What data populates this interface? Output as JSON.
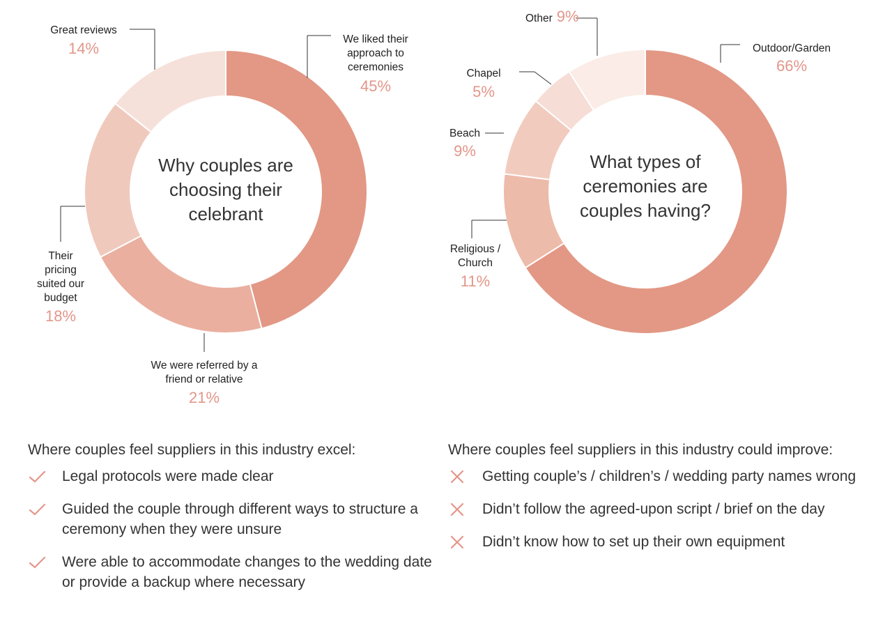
{
  "chart_data": [
    {
      "type": "pie",
      "title": "Why couples are choosing their celebrant",
      "title_lines": [
        "Why couples are",
        "choosing their",
        "celebrant"
      ],
      "slices": [
        {
          "label": "We liked their approach to ceremonies",
          "label_lines": [
            "We liked their",
            "approach to",
            "ceremonies"
          ],
          "value": 45,
          "display": "45%",
          "color": "#e29885"
        },
        {
          "label": "We were referred by a friend or relative",
          "label_lines": [
            "We were referred by a",
            "friend or relative"
          ],
          "value": 21,
          "display": "21%",
          "color": "#eaaf9f"
        },
        {
          "label": "Their pricing suited our budget",
          "label_lines": [
            "Their",
            "pricing",
            "suited our",
            "budget"
          ],
          "value": 18,
          "display": "18%",
          "color": "#f0c9bd"
        },
        {
          "label": "Great reviews",
          "label_lines": [
            "Great reviews"
          ],
          "value": 14,
          "display": "14%",
          "color": "#f6e1da"
        }
      ]
    },
    {
      "type": "pie",
      "title": "What types of ceremonies are couples having?",
      "title_lines": [
        "What types of",
        "ceremonies are",
        "couples having?"
      ],
      "slices": [
        {
          "label": "Outdoor/Garden",
          "label_lines": [
            "Outdoor/Garden"
          ],
          "value": 66,
          "display": "66%",
          "color": "#e29885"
        },
        {
          "label": "Religious / Church",
          "label_lines": [
            "Religious /",
            "Church"
          ],
          "value": 11,
          "display": "11%",
          "color": "#edbba9"
        },
        {
          "label": "Beach",
          "label_lines": [
            "Beach"
          ],
          "value": 9,
          "display": "9%",
          "color": "#f2cbbf"
        },
        {
          "label": "Chapel",
          "label_lines": [
            "Chapel"
          ],
          "value": 5,
          "display": "5%",
          "color": "#f6ddd5"
        },
        {
          "label": "Other",
          "label_lines": [
            "Other"
          ],
          "value": 9,
          "display": "9%",
          "color": "#fbece7"
        }
      ]
    }
  ],
  "excel": {
    "heading": "Where couples feel suppliers in this industry excel:",
    "icon": "check-icon",
    "items": [
      "Legal protocols were made clear",
      "Guided the couple through different ways to structure a ceremony when they were unsure",
      "Were able to accommodate changes to the wedding date or provide a backup where necessary"
    ]
  },
  "improve": {
    "heading": "Where couples feel suppliers in this industry could improve:",
    "icon": "cross-icon",
    "items": [
      "Getting couple’s / children’s / wedding party names wrong",
      "Didn’t follow the agreed-upon script / brief on the day",
      "Didn’t know how to set up their own equipment"
    ]
  },
  "colors": {
    "accent": "#e3968a",
    "text": "#333333"
  }
}
